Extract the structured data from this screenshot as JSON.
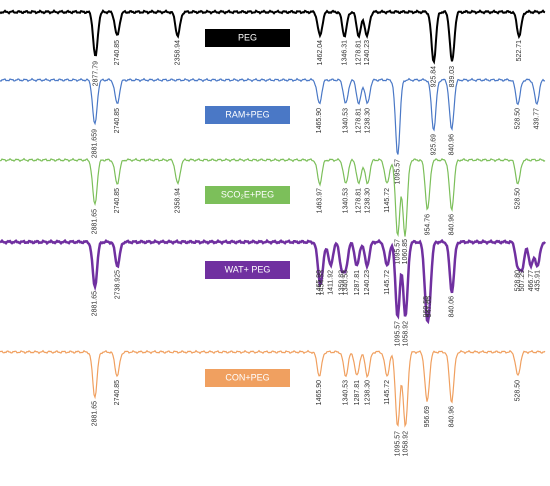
{
  "spectra": [
    {
      "name": "PEG",
      "color": "#000000",
      "peaks": [
        "2877.79",
        "2740.85",
        "2358.94",
        "1462.04",
        "1346.31",
        "1278.81",
        "1240.23",
        "925.84",
        "839.03",
        "522.71"
      ]
    },
    {
      "name": "RAM+PEG",
      "color": "#4a78c6",
      "peaks": [
        "2881.659",
        "2740.85",
        "1465.90",
        "1340.53",
        "1278.81",
        "1238.30",
        "1095.57",
        "925.69",
        "840.96",
        "528.50",
        "439.77"
      ]
    },
    {
      "name": "SCO₂E+PEG",
      "color": "#7cbf5a",
      "peaks": [
        "2881.65",
        "2740.85",
        "2358.94",
        "1463.97",
        "1340.53",
        "1278.81",
        "1238.30",
        "1145.72",
        "1095.57",
        "1060.85",
        "954.76",
        "840.96",
        "528.50"
      ]
    },
    {
      "name": "WAT+ PEG",
      "color": "#7030a0",
      "peaks": [
        "2881.65",
        "2738.925",
        "1465.90",
        "1454.33",
        "1411.92",
        "1359.82",
        "1340.53",
        "1287.81",
        "1240.23",
        "1145.72",
        "1095.57",
        "1058.92",
        "960.55",
        "947.05",
        "840.06",
        "528.80",
        "507.29",
        "466.77",
        "435.91"
      ]
    },
    {
      "name": "CON+PEG",
      "color": "#f0a060",
      "peaks": [
        "2881.65",
        "2740.85",
        "1465.90",
        "1340.53",
        "1287.81",
        "1238.30",
        "1145.72",
        "1095.57",
        "1058.92",
        "956.69",
        "840.96",
        "528.50"
      ]
    }
  ]
}
